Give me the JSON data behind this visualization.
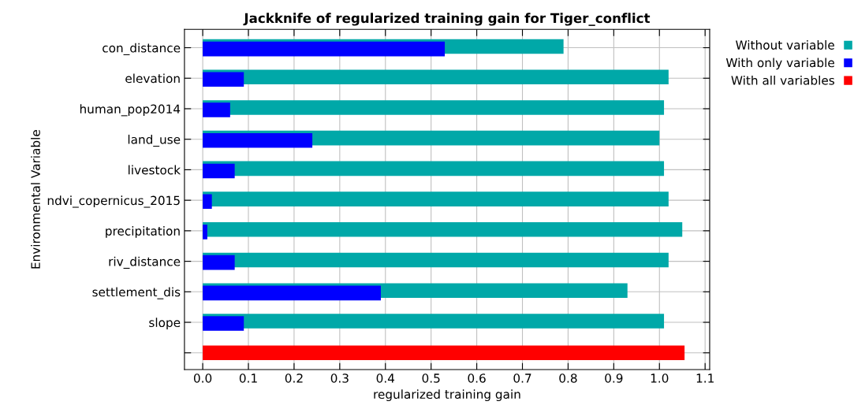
{
  "chart_data": {
    "type": "bar",
    "orientation": "horizontal",
    "title": "Jackknife of regularized training gain for Tiger_conflict",
    "xlabel": "regularized training gain",
    "ylabel": "Environmental Variable",
    "categories": [
      "con_distance",
      "elevation",
      "human_pop2014",
      "land_use",
      "livestock",
      "ndvi_copernicus_2015",
      "precipitation",
      "riv_distance",
      "settlement_dis",
      "slope",
      null
    ],
    "series": [
      {
        "name": "Without variable",
        "color": "#00a8a8",
        "values": [
          0.79,
          1.02,
          1.01,
          1.0,
          1.01,
          1.02,
          1.05,
          1.02,
          0.93,
          1.01,
          null
        ]
      },
      {
        "name": "With only variable",
        "color": "#0000ff",
        "values": [
          0.53,
          0.09,
          0.06,
          0.24,
          0.07,
          0.02,
          0.01,
          0.07,
          0.39,
          0.09,
          null
        ]
      },
      {
        "name": "With all variables",
        "color": "#ff0000",
        "values": [
          null,
          null,
          null,
          null,
          null,
          null,
          null,
          null,
          null,
          null,
          1.055
        ]
      }
    ],
    "xlim": [
      -0.04,
      1.11
    ],
    "xticks": [
      {
        "value": 0,
        "label": "0.0"
      },
      0.1,
      0.2,
      0.3,
      0.4,
      0.5,
      0.6,
      0.7,
      0.8,
      0.9,
      {
        "value": 1,
        "label": "1.0"
      },
      1.1
    ],
    "grid": true,
    "legend": "top right"
  }
}
